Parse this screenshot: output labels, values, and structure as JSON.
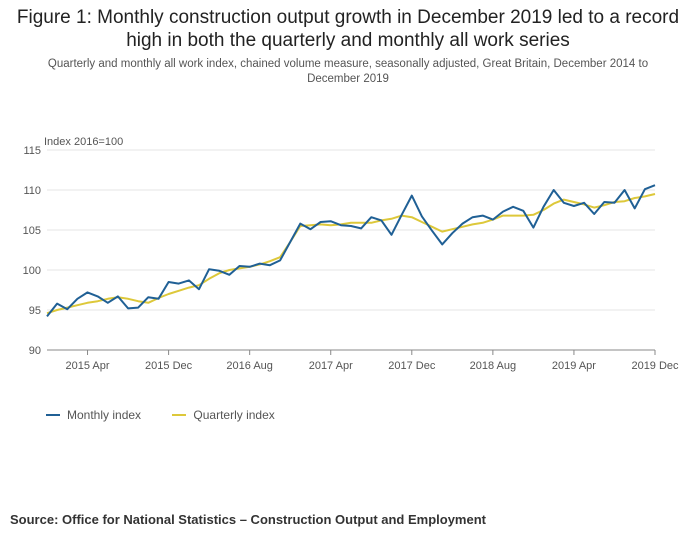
{
  "title": "Figure 1: Monthly construction output growth in December 2019 led to a record high in both the quarterly and monthly all work series",
  "subtitle": "Quarterly and monthly all work index, chained volume measure, seasonally adjusted, Great Britain, December 2014 to December 2019",
  "source": "Source: Office for National Statistics – Construction Output and Employment",
  "colors": {
    "monthly": "#206095",
    "quarterly": "#ddc83a",
    "grid": "#e4e4e4",
    "axis": "#888888"
  },
  "chart_data": {
    "type": "line",
    "ylabel": "Index 2016=100",
    "ylim": [
      90,
      115
    ],
    "yticks": [
      90,
      95,
      100,
      105,
      110,
      115
    ],
    "grid": true,
    "legend_position": "bottom-left",
    "x": [
      "Dec 2014",
      "Jan 2015",
      "Feb 2015",
      "Mar 2015",
      "Apr 2015",
      "May 2015",
      "Jun 2015",
      "Jul 2015",
      "Aug 2015",
      "Sep 2015",
      "Oct 2015",
      "Nov 2015",
      "Dec 2015",
      "Jan 2016",
      "Feb 2016",
      "Mar 2016",
      "Apr 2016",
      "May 2016",
      "Jun 2016",
      "Jul 2016",
      "Aug 2016",
      "Sep 2016",
      "Oct 2016",
      "Nov 2016",
      "Dec 2016",
      "Jan 2017",
      "Feb 2017",
      "Mar 2017",
      "Apr 2017",
      "May 2017",
      "Jun 2017",
      "Jul 2017",
      "Aug 2017",
      "Sep 2017",
      "Oct 2017",
      "Nov 2017",
      "Dec 2017",
      "Jan 2018",
      "Feb 2018",
      "Mar 2018",
      "Apr 2018",
      "May 2018",
      "Jun 2018",
      "Jul 2018",
      "Aug 2018",
      "Sep 2018",
      "Oct 2018",
      "Nov 2018",
      "Dec 2018",
      "Jan 2019",
      "Feb 2019",
      "Mar 2019",
      "Apr 2019",
      "May 2019",
      "Jun 2019",
      "Jul 2019",
      "Aug 2019",
      "Sep 2019",
      "Oct 2019",
      "Nov 2019",
      "Dec 2019"
    ],
    "xtick_labels": [
      {
        "index": 4,
        "label": "2015 Apr"
      },
      {
        "index": 12,
        "label": "2015 Dec"
      },
      {
        "index": 20,
        "label": "2016 Aug"
      },
      {
        "index": 28,
        "label": "2017 Apr"
      },
      {
        "index": 36,
        "label": "2017 Dec"
      },
      {
        "index": 44,
        "label": "2018 Aug"
      },
      {
        "index": 52,
        "label": "2019 Apr"
      },
      {
        "index": 60,
        "label": "2019 Dec"
      }
    ],
    "series": [
      {
        "name": "Monthly index",
        "values": [
          94.2,
          95.8,
          95.1,
          96.4,
          97.2,
          96.7,
          95.9,
          96.7,
          95.2,
          95.3,
          96.6,
          96.4,
          98.5,
          98.3,
          98.7,
          97.6,
          100.1,
          99.9,
          99.4,
          100.5,
          100.4,
          100.8,
          100.6,
          101.2,
          103.5,
          105.8,
          105.1,
          106.0,
          106.1,
          105.6,
          105.5,
          105.2,
          106.6,
          106.2,
          104.4,
          106.9,
          109.3,
          106.7,
          104.9,
          103.2,
          104.6,
          105.8,
          106.6,
          106.8,
          106.3,
          107.3,
          107.9,
          107.4,
          105.3,
          107.9,
          110.0,
          108.4,
          108.0,
          108.4,
          107.0,
          108.5,
          108.4,
          110.0,
          107.7,
          110.1,
          110.6
        ]
      },
      {
        "name": "Quarterly index",
        "values": [
          94.6,
          95.0,
          95.3,
          95.6,
          95.9,
          96.1,
          96.4,
          96.6,
          96.4,
          96.1,
          95.9,
          96.5,
          97.0,
          97.4,
          97.8,
          98.1,
          98.9,
          99.6,
          100.0,
          100.2,
          100.4,
          100.7,
          101.1,
          101.6,
          103.5,
          105.5,
          105.6,
          105.7,
          105.6,
          105.7,
          105.9,
          105.9,
          105.9,
          106.2,
          106.4,
          106.8,
          106.6,
          106.0,
          105.4,
          104.8,
          105.1,
          105.4,
          105.7,
          105.9,
          106.3,
          106.8,
          106.8,
          106.8,
          106.9,
          107.5,
          108.3,
          108.8,
          108.5,
          108.2,
          107.8,
          108.1,
          108.5,
          108.6,
          109.0,
          109.2,
          109.5
        ]
      }
    ]
  }
}
